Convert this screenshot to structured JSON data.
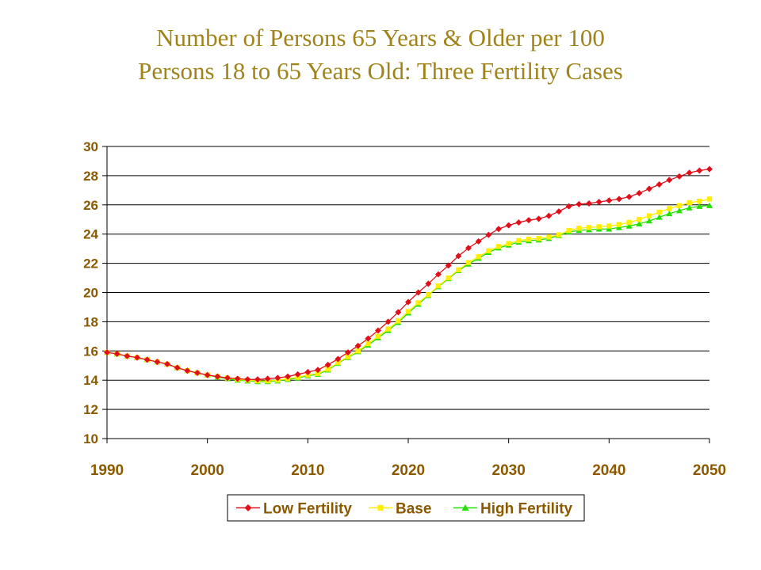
{
  "chart_data": {
    "type": "line",
    "title": "Number of Persons 65 Years & Older per 100 Persons 18 to 65 Years Old: Three Fertility Cases",
    "title_lines": [
      "Number of Persons 65 Years & Older per 100",
      "Persons 18 to 65 Years Old: Three Fertility Cases"
    ],
    "xlabel": "",
    "ylabel": "",
    "xlim": [
      1990,
      2050
    ],
    "ylim": [
      10,
      30
    ],
    "x_ticks": [
      1990,
      2000,
      2010,
      2020,
      2030,
      2040,
      2050
    ],
    "y_ticks": [
      10,
      12,
      14,
      16,
      18,
      20,
      22,
      24,
      26,
      28,
      30
    ],
    "grid": "horizontal",
    "legend_position": "bottom",
    "colors": {
      "title": "#A0841A",
      "ticks": "#8B5A00",
      "axis": "#000000",
      "grid": "#000000"
    },
    "x": [
      1990,
      1991,
      1992,
      1993,
      1994,
      1995,
      1996,
      1997,
      1998,
      1999,
      2000,
      2001,
      2002,
      2003,
      2004,
      2005,
      2006,
      2007,
      2008,
      2009,
      2010,
      2011,
      2012,
      2013,
      2014,
      2015,
      2016,
      2017,
      2018,
      2019,
      2020,
      2021,
      2022,
      2023,
      2024,
      2025,
      2026,
      2027,
      2028,
      2029,
      2030,
      2031,
      2032,
      2033,
      2034,
      2035,
      2036,
      2037,
      2038,
      2039,
      2040,
      2041,
      2042,
      2043,
      2044,
      2045,
      2046,
      2047,
      2048,
      2049,
      2050
    ],
    "series": [
      {
        "name": "Low Fertility",
        "color": "#E0101A",
        "marker": "diamond",
        "values": [
          15.9,
          15.8,
          15.65,
          15.55,
          15.4,
          15.25,
          15.1,
          14.85,
          14.65,
          14.5,
          14.35,
          14.25,
          14.15,
          14.1,
          14.05,
          14.05,
          14.1,
          14.15,
          14.25,
          14.4,
          14.55,
          14.7,
          15.05,
          15.45,
          15.9,
          16.35,
          16.85,
          17.4,
          18.0,
          18.65,
          19.35,
          20.0,
          20.6,
          21.25,
          21.85,
          22.5,
          23.05,
          23.5,
          23.95,
          24.35,
          24.6,
          24.8,
          24.95,
          25.05,
          25.25,
          25.55,
          25.9,
          26.05,
          26.1,
          26.2,
          26.3,
          26.4,
          26.55,
          26.8,
          27.1,
          27.4,
          27.7,
          27.95,
          28.2,
          28.35,
          28.45
        ]
      },
      {
        "name": "Base",
        "color": "#FFEE00",
        "marker": "square",
        "values": [
          15.9,
          15.8,
          15.65,
          15.55,
          15.4,
          15.25,
          15.1,
          14.85,
          14.65,
          14.5,
          14.35,
          14.25,
          14.15,
          14.05,
          14.0,
          13.95,
          13.95,
          14.0,
          14.1,
          14.2,
          14.35,
          14.45,
          14.75,
          15.2,
          15.6,
          16.0,
          16.5,
          17.0,
          17.5,
          18.05,
          18.7,
          19.3,
          19.85,
          20.45,
          21.0,
          21.55,
          22.05,
          22.45,
          22.85,
          23.15,
          23.35,
          23.55,
          23.65,
          23.7,
          23.8,
          23.95,
          24.25,
          24.4,
          24.45,
          24.5,
          24.55,
          24.65,
          24.8,
          25.0,
          25.25,
          25.5,
          25.75,
          25.95,
          26.15,
          26.25,
          26.4
        ]
      },
      {
        "name": "High Fertility",
        "color": "#22E000",
        "marker": "triangle",
        "values": [
          15.9,
          15.8,
          15.65,
          15.55,
          15.4,
          15.25,
          15.1,
          14.85,
          14.65,
          14.5,
          14.35,
          14.2,
          14.1,
          14.0,
          13.95,
          13.9,
          13.9,
          13.95,
          14.05,
          14.15,
          14.3,
          14.4,
          14.7,
          15.15,
          15.55,
          15.95,
          16.4,
          16.9,
          17.4,
          17.95,
          18.6,
          19.2,
          19.8,
          20.4,
          20.95,
          21.5,
          21.95,
          22.35,
          22.75,
          23.05,
          23.25,
          23.45,
          23.55,
          23.6,
          23.7,
          23.9,
          24.15,
          24.25,
          24.3,
          24.35,
          24.35,
          24.45,
          24.55,
          24.7,
          24.9,
          25.15,
          25.4,
          25.6,
          25.8,
          25.9,
          25.95
        ]
      }
    ]
  }
}
